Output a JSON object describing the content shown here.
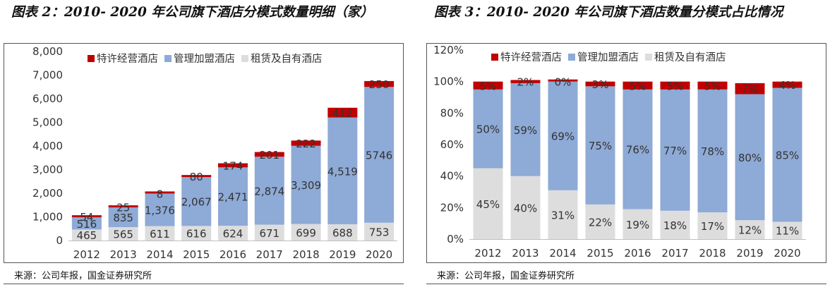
{
  "charts": [
    {
      "title": "图表 2：2010- 2020 年公司旗下酒店分模式数量明细（家）",
      "source": "来源：公司年报，国金证券研究所"
    },
    {
      "title": "图表 3：2010- 2020 年公司旗下酒店数量分模式占比情况",
      "source": "来源：公司年报，国金证券研究所"
    }
  ],
  "colors": {
    "red": "#c00000",
    "blue": "#8eaad6",
    "gray": "#dddddd"
  },
  "chart_data": [
    {
      "type": "bar",
      "stacked": true,
      "categories": [
        "2012",
        "2013",
        "2014",
        "2015",
        "2016",
        "2017",
        "2018",
        "2019",
        "2020"
      ],
      "series": [
        {
          "name": "特许经营酒店",
          "values": [
            54,
            25,
            8,
            80,
            174,
            201,
            222,
            412,
            250
          ],
          "labels": [
            "54",
            "25",
            "8",
            "80",
            "174",
            "201",
            "222",
            "412",
            "250"
          ]
        },
        {
          "name": "管理加盟酒店",
          "values": [
            516,
            835,
            1376,
            2067,
            2471,
            2874,
            3309,
            4519,
            5746
          ],
          "labels": [
            "516",
            "835",
            "1,376",
            "2,067",
            "2,471",
            "2,874",
            "3,309",
            "4,519",
            "5746"
          ]
        },
        {
          "name": "租赁及自有酒店",
          "values": [
            465,
            565,
            611,
            616,
            624,
            671,
            699,
            688,
            753
          ],
          "labels": [
            "465",
            "565",
            "611",
            "616",
            "624",
            "671",
            "699",
            "688",
            "753"
          ]
        }
      ],
      "ylim": [
        0,
        8000
      ],
      "yticks": [
        "0",
        "1,000",
        "2,000",
        "3,000",
        "4,000",
        "5,000",
        "6,000",
        "7,000",
        "8,000"
      ],
      "legend": "top-left"
    },
    {
      "type": "bar",
      "stacked": true,
      "categories": [
        "2012",
        "2013",
        "2014",
        "2015",
        "2016",
        "2017",
        "2018",
        "2019",
        "2020"
      ],
      "series": [
        {
          "name": "特许经营酒店",
          "values": [
            5,
            2,
            0,
            3,
            5,
            5,
            5,
            7,
            4
          ],
          "labels": [
            "5%",
            "2%",
            "0%",
            "3%",
            "5%",
            "5%",
            "5%",
            "7%",
            "4%"
          ]
        },
        {
          "name": "管理加盟酒店",
          "values": [
            50,
            59,
            69,
            75,
            76,
            77,
            78,
            80,
            85
          ],
          "labels": [
            "50%",
            "59%",
            "69%",
            "75%",
            "76%",
            "77%",
            "78%",
            "80%",
            "85%"
          ]
        },
        {
          "name": "租赁及自有酒店",
          "values": [
            45,
            40,
            31,
            22,
            19,
            18,
            17,
            12,
            11
          ],
          "labels": [
            "45%",
            "40%",
            "31%",
            "22%",
            "19%",
            "18%",
            "17%",
            "12%",
            "11%"
          ]
        }
      ],
      "ylim": [
        0,
        120
      ],
      "yticks": [
        "0%",
        "20%",
        "40%",
        "60%",
        "80%",
        "100%",
        "120%"
      ],
      "legend": "top-left"
    }
  ]
}
